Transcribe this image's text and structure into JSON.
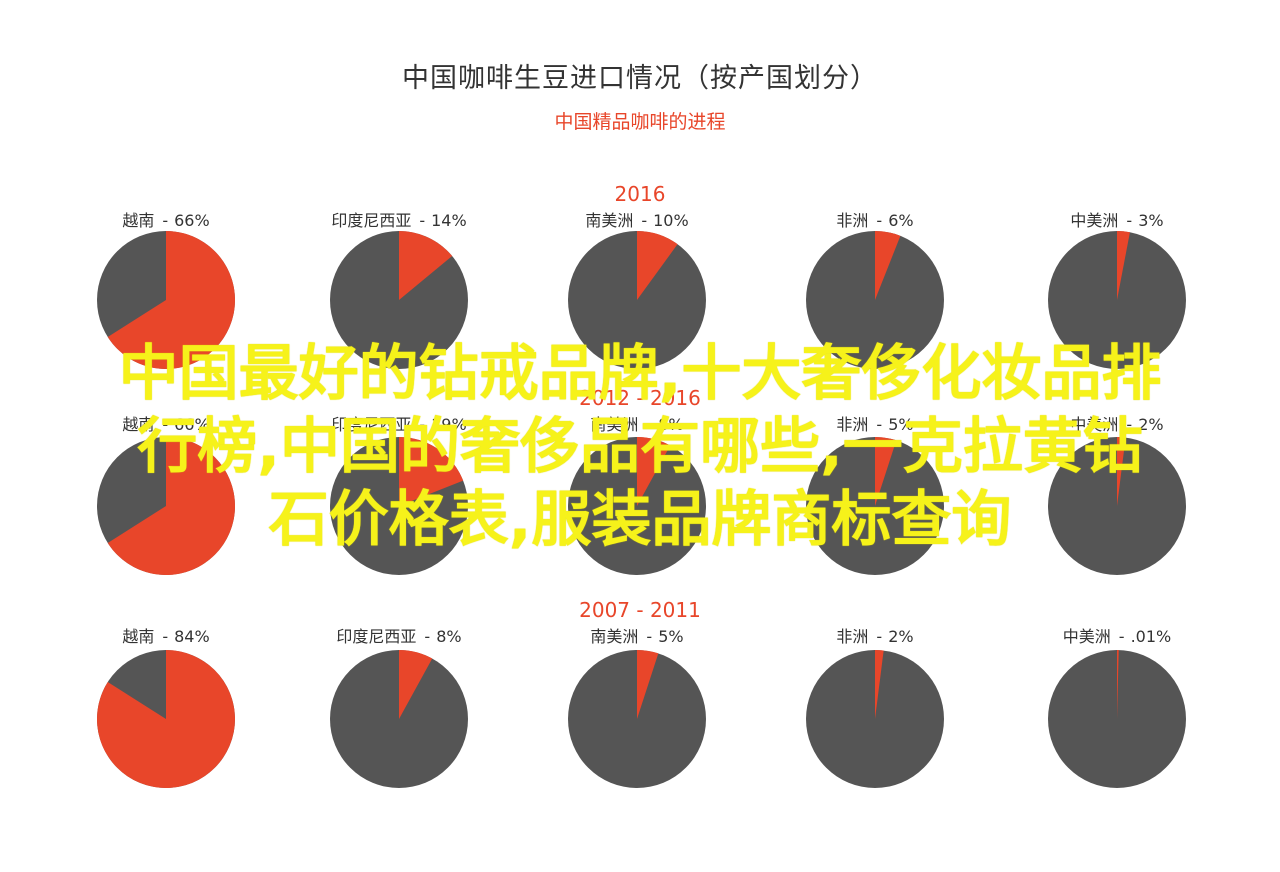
{
  "header": {
    "title": "中国咖啡生豆进口情况（按产国划分）",
    "subtitle": "中国精品咖啡的进程"
  },
  "colors": {
    "accent": "#e8462a",
    "remainder": "#555555",
    "overlay_text": "#f6f21a"
  },
  "chart_data": [
    {
      "type": "pie",
      "title": "2016",
      "pies": [
        {
          "name": "越南",
          "label": "66%",
          "value": 66
        },
        {
          "name": "印度尼西亚",
          "label": "14%",
          "value": 14
        },
        {
          "name": "南美洲",
          "label": "10%",
          "value": 10
        },
        {
          "name": "非洲",
          "label": "6%",
          "value": 6
        },
        {
          "name": "中美洲",
          "label": "3%",
          "value": 3
        }
      ]
    },
    {
      "type": "pie",
      "title": "2012 - 2016",
      "pies": [
        {
          "name": "越南",
          "label": "66%",
          "value": 66
        },
        {
          "name": "印度尼西亚",
          "label": "19%",
          "value": 19
        },
        {
          "name": "南美洲",
          "label": "8%",
          "value": 8
        },
        {
          "name": "非洲",
          "label": "5%",
          "value": 5
        },
        {
          "name": "中美洲",
          "label": "2%",
          "value": 2
        }
      ]
    },
    {
      "type": "pie",
      "title": "2007 - 2011",
      "pies": [
        {
          "name": "越南",
          "label": "84%",
          "value": 84
        },
        {
          "name": "印度尼西亚",
          "label": "8%",
          "value": 8
        },
        {
          "name": "南美洲",
          "label": "5%",
          "value": 5
        },
        {
          "name": "非洲",
          "label": "2%",
          "value": 2
        },
        {
          "name": "中美洲",
          "label": ".01%",
          "value": 0.01
        }
      ]
    }
  ],
  "overlay": {
    "lines": [
      "中国最好的钻戒品牌,十大奢侈化妆品排",
      "行榜,中国的奢侈品有哪些,一克拉黄钻",
      "石价格表,服装品牌商标查询"
    ]
  }
}
